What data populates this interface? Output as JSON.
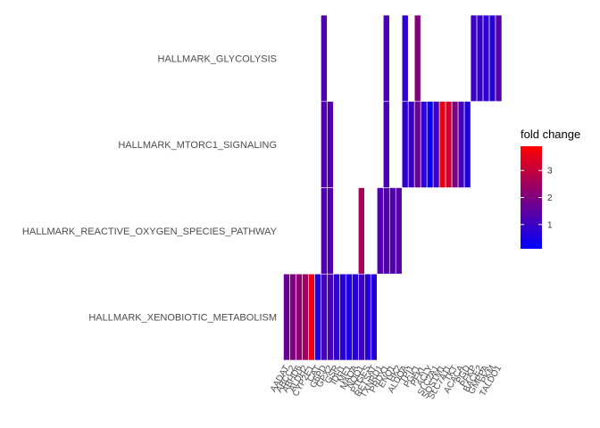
{
  "chart_data": {
    "type": "heatmap",
    "title": "",
    "xlabel": "",
    "ylabel": "",
    "grid": false,
    "legend_position": "right",
    "color_scale": {
      "low": "#0000ff",
      "high": "#ff0000"
    },
    "y_categories": [
      "HALLMARK_GLYCOLYSIS",
      "HALLMARK_MTORC1_SIGNALING",
      "HALLMARK_REACTIVE_OXYGEN_SPECIES_PATHWAY",
      "HALLMARK_XENOBIOTIC_METABOLISM"
    ],
    "x_categories": [
      "AADAT",
      "ABCC2",
      "ABHD6",
      "ALDH2",
      "CYP2E1",
      "CAT",
      "G6PD",
      "GPX2",
      "GSR",
      "IDH1",
      "ME1",
      "MAOA",
      "NQO1",
      "PTGES",
      "RETSAT",
      "TXNRD1",
      "PRDX1",
      "ENO1",
      "HK2",
      "ALDOA",
      "TPI1",
      "PGK1",
      "PFKL",
      "ACLY",
      "SLC2A1",
      "SQSTM1",
      "SLC7A11",
      "TKT",
      "ACACA",
      "PGD",
      "PFKP",
      "BACE2",
      "GMPPA",
      "PKM",
      "TALDO1"
    ],
    "legend": {
      "title": "fold change",
      "ticks": [
        1,
        2,
        3
      ],
      "min": 0.1,
      "max": 3.9
    },
    "cells": [
      {
        "x": "AADAT",
        "y": "HALLMARK_XENOBIOTIC_METABOLISM",
        "value": 1.7
      },
      {
        "x": "ABCC2",
        "y": "HALLMARK_XENOBIOTIC_METABOLISM",
        "value": 2.0
      },
      {
        "x": "ABHD6",
        "y": "HALLMARK_XENOBIOTIC_METABOLISM",
        "value": 2.2
      },
      {
        "x": "ALDH2",
        "y": "HALLMARK_XENOBIOTIC_METABOLISM",
        "value": 2.5
      },
      {
        "x": "CYP2E1",
        "y": "HALLMARK_XENOBIOTIC_METABOLISM",
        "value": 3.6
      },
      {
        "x": "CAT",
        "y": "HALLMARK_XENOBIOTIC_METABOLISM",
        "value": 0.6
      },
      {
        "x": "G6PD",
        "y": "HALLMARK_XENOBIOTIC_METABOLISM",
        "value": 1.1
      },
      {
        "x": "G6PD",
        "y": "HALLMARK_REACTIVE_OXYGEN_SPECIES_PATHWAY",
        "value": 1.3
      },
      {
        "x": "G6PD",
        "y": "HALLMARK_MTORC1_SIGNALING",
        "value": 1.3
      },
      {
        "x": "G6PD",
        "y": "HALLMARK_GLYCOLYSIS",
        "value": 1.3
      },
      {
        "x": "GPX2",
        "y": "HALLMARK_XENOBIOTIC_METABOLISM",
        "value": 1.2
      },
      {
        "x": "GPX2",
        "y": "HALLMARK_REACTIVE_OXYGEN_SPECIES_PATHWAY",
        "value": 1.3
      },
      {
        "x": "GPX2",
        "y": "HALLMARK_MTORC1_SIGNALING",
        "value": 1.3
      },
      {
        "x": "GSR",
        "y": "HALLMARK_XENOBIOTIC_METABOLISM",
        "value": 0.8
      },
      {
        "x": "IDH1",
        "y": "HALLMARK_XENOBIOTIC_METABOLISM",
        "value": 0.7
      },
      {
        "x": "ME1",
        "y": "HALLMARK_XENOBIOTIC_METABOLISM",
        "value": 0.5
      },
      {
        "x": "MAOA",
        "y": "HALLMARK_XENOBIOTIC_METABOLISM",
        "value": 0.7
      },
      {
        "x": "NQO1",
        "y": "HALLMARK_XENOBIOTIC_METABOLISM",
        "value": 1.0
      },
      {
        "x": "NQO1",
        "y": "HALLMARK_REACTIVE_OXYGEN_SPECIES_PATHWAY",
        "value": 2.6
      },
      {
        "x": "PTGES",
        "y": "HALLMARK_XENOBIOTIC_METABOLISM",
        "value": 0.7
      },
      {
        "x": "RETSAT",
        "y": "HALLMARK_XENOBIOTIC_METABOLISM",
        "value": 0.6
      },
      {
        "x": "TXNRD1",
        "y": "HALLMARK_REACTIVE_OXYGEN_SPECIES_PATHWAY",
        "value": 1.3
      },
      {
        "x": "PRDX1",
        "y": "HALLMARK_REACTIVE_OXYGEN_SPECIES_PATHWAY",
        "value": 1.3
      },
      {
        "x": "PRDX1",
        "y": "HALLMARK_MTORC1_SIGNALING",
        "value": 1.2
      },
      {
        "x": "PRDX1",
        "y": "HALLMARK_GLYCOLYSIS",
        "value": 1.2
      },
      {
        "x": "ENO1",
        "y": "HALLMARK_REACTIVE_OXYGEN_SPECIES_PATHWAY",
        "value": 1.3
      },
      {
        "x": "HK2",
        "y": "HALLMARK_REACTIVE_OXYGEN_SPECIES_PATHWAY",
        "value": 1.4
      },
      {
        "x": "ALDOA",
        "y": "HALLMARK_MTORC1_SIGNALING",
        "value": 0.8
      },
      {
        "x": "ALDOA",
        "y": "HALLMARK_GLYCOLYSIS",
        "value": 0.8
      },
      {
        "x": "TPI1",
        "y": "HALLMARK_MTORC1_SIGNALING",
        "value": 1.0
      },
      {
        "x": "PGK1",
        "y": "HALLMARK_MTORC1_SIGNALING",
        "value": 1.7
      },
      {
        "x": "PGK1",
        "y": "HALLMARK_GLYCOLYSIS",
        "value": 2.1
      },
      {
        "x": "PFKL",
        "y": "HALLMARK_MTORC1_SIGNALING",
        "value": 0.8
      },
      {
        "x": "ACLY",
        "y": "HALLMARK_MTORC1_SIGNALING",
        "value": 0.3
      },
      {
        "x": "SLC2A1",
        "y": "HALLMARK_MTORC1_SIGNALING",
        "value": 1.0
      },
      {
        "x": "SQSTM1",
        "y": "HALLMARK_MTORC1_SIGNALING",
        "value": 3.6
      },
      {
        "x": "SLC7A11",
        "y": "HALLMARK_MTORC1_SIGNALING",
        "value": 3.2
      },
      {
        "x": "TKT",
        "y": "HALLMARK_MTORC1_SIGNALING",
        "value": 2.0
      },
      {
        "x": "ACACA",
        "y": "HALLMARK_MTORC1_SIGNALING",
        "value": 1.1
      },
      {
        "x": "PGD",
        "y": "HALLMARK_MTORC1_SIGNALING",
        "value": 0.6
      },
      {
        "x": "PFKP",
        "y": "HALLMARK_GLYCOLYSIS",
        "value": 1.0
      },
      {
        "x": "BACE2",
        "y": "HALLMARK_GLYCOLYSIS",
        "value": 0.9
      },
      {
        "x": "GMPPA",
        "y": "HALLMARK_GLYCOLYSIS",
        "value": 0.8
      },
      {
        "x": "PKM",
        "y": "HALLMARK_GLYCOLYSIS",
        "value": 0.7
      },
      {
        "x": "TALDO1",
        "y": "HALLMARK_GLYCOLYSIS",
        "value": 1.4
      }
    ]
  }
}
